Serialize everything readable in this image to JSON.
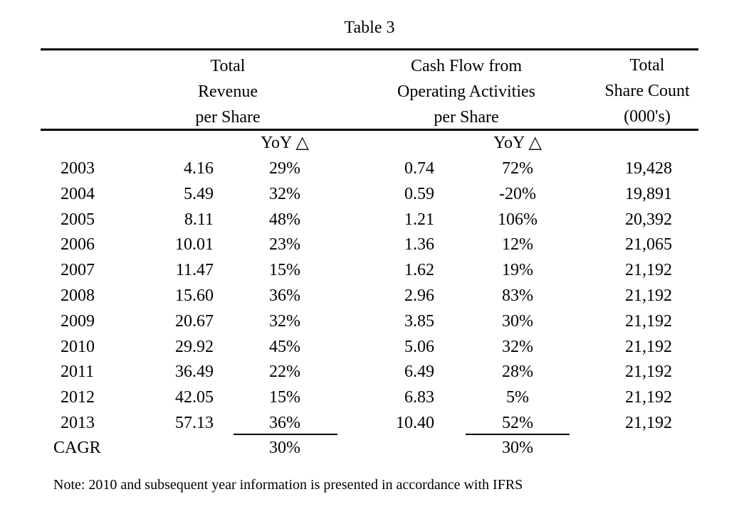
{
  "title": "Table 3",
  "headers": {
    "revenue": [
      "Total",
      "Revenue",
      "per Share"
    ],
    "cashflow": [
      "Cash Flow from",
      "Operating Activities",
      "per Share"
    ],
    "shares": [
      "Total",
      "Share Count",
      "(000's)"
    ],
    "yoy_revenue": "YoY △",
    "yoy_cashflow": "YoY △"
  },
  "rows": [
    {
      "year": "2003",
      "rev": "4.16",
      "rev_yoy": "29%",
      "cf": "0.74",
      "cf_yoy": "72%",
      "shares": "19,428"
    },
    {
      "year": "2004",
      "rev": "5.49",
      "rev_yoy": "32%",
      "cf": "0.59",
      "cf_yoy": "-20%",
      "shares": "19,891"
    },
    {
      "year": "2005",
      "rev": "8.11",
      "rev_yoy": "48%",
      "cf": "1.21",
      "cf_yoy": "106%",
      "shares": "20,392"
    },
    {
      "year": "2006",
      "rev": "10.01",
      "rev_yoy": "23%",
      "cf": "1.36",
      "cf_yoy": "12%",
      "shares": "21,065"
    },
    {
      "year": "2007",
      "rev": "11.47",
      "rev_yoy": "15%",
      "cf": "1.62",
      "cf_yoy": "19%",
      "shares": "21,192"
    },
    {
      "year": "2008",
      "rev": "15.60",
      "rev_yoy": "36%",
      "cf": "2.96",
      "cf_yoy": "83%",
      "shares": "21,192"
    },
    {
      "year": "2009",
      "rev": "20.67",
      "rev_yoy": "32%",
      "cf": "3.85",
      "cf_yoy": "30%",
      "shares": "21,192"
    },
    {
      "year": "2010",
      "rev": "29.92",
      "rev_yoy": "45%",
      "cf": "5.06",
      "cf_yoy": "32%",
      "shares": "21,192"
    },
    {
      "year": "2011",
      "rev": "36.49",
      "rev_yoy": "22%",
      "cf": "6.49",
      "cf_yoy": "28%",
      "shares": "21,192"
    },
    {
      "year": "2012",
      "rev": "42.05",
      "rev_yoy": "15%",
      "cf": "6.83",
      "cf_yoy": "5%",
      "shares": "21,192"
    },
    {
      "year": "2013",
      "rev": "57.13",
      "rev_yoy": "36%",
      "cf": "10.40",
      "cf_yoy": "52%",
      "shares": "21,192"
    }
  ],
  "cagr": {
    "label": "CAGR",
    "rev": "30%",
    "cf": "30%"
  },
  "note": "Note: 2010 and subsequent year information is presented in accordance with IFRS"
}
